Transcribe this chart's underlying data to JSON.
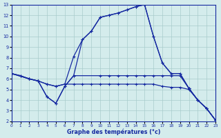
{
  "xlabel": "Graphe des températures (°c)",
  "xlim": [
    0,
    23
  ],
  "ylim": [
    2,
    13
  ],
  "xticks": [
    0,
    1,
    2,
    3,
    4,
    5,
    6,
    7,
    8,
    9,
    10,
    11,
    12,
    13,
    14,
    15,
    16,
    17,
    18,
    19,
    20,
    21,
    22,
    23
  ],
  "yticks": [
    2,
    3,
    4,
    5,
    6,
    7,
    8,
    9,
    10,
    11,
    12,
    13
  ],
  "bg_color": "#d4ecec",
  "grid_color": "#a8cccc",
  "lc": "#1428a0",
  "line1_x": [
    0,
    1,
    2,
    3,
    4,
    5,
    6,
    7,
    8,
    9,
    10,
    11,
    12,
    13,
    14,
    15,
    16,
    17,
    18,
    19,
    20,
    21,
    22,
    23
  ],
  "line1_y": [
    6.5,
    6.3,
    6.0,
    5.8,
    5.5,
    5.3,
    5.5,
    8.1,
    9.7,
    10.5,
    11.8,
    12.0,
    12.2,
    12.5,
    12.8,
    13.0,
    10.0,
    7.5,
    6.5,
    6.5,
    5.1,
    4.0,
    3.2,
    2.1
  ],
  "line2_x": [
    0,
    1,
    2,
    3,
    4,
    5,
    6,
    7,
    8,
    9,
    10,
    11,
    12,
    13,
    14,
    15,
    16,
    17,
    18,
    19,
    20,
    21,
    22,
    23
  ],
  "line2_y": [
    6.5,
    6.3,
    6.0,
    5.8,
    5.5,
    5.3,
    5.5,
    5.5,
    5.5,
    5.5,
    5.5,
    5.5,
    5.5,
    5.5,
    5.5,
    5.5,
    5.5,
    5.3,
    5.2,
    5.2,
    5.0,
    4.0,
    3.2,
    2.1
  ],
  "line3_x": [
    0,
    2,
    3,
    4,
    5,
    6,
    7,
    8,
    9,
    10,
    11,
    12,
    13,
    14,
    15,
    16,
    17,
    18,
    19,
    20,
    21,
    22,
    23
  ],
  "line3_y": [
    6.5,
    6.0,
    5.8,
    4.3,
    3.7,
    5.3,
    6.3,
    9.7,
    10.5,
    11.8,
    12.0,
    12.2,
    12.5,
    12.8,
    13.0,
    10.0,
    7.5,
    6.5,
    6.5,
    5.1,
    4.0,
    3.2,
    2.1
  ],
  "line4_x": [
    0,
    2,
    3,
    4,
    5,
    6,
    7,
    10,
    11,
    12,
    13,
    14,
    15,
    16,
    17,
    18,
    19,
    20,
    21,
    22,
    23
  ],
  "line4_y": [
    6.5,
    6.0,
    5.8,
    4.3,
    3.7,
    5.3,
    6.3,
    6.3,
    6.3,
    6.3,
    6.3,
    6.3,
    6.3,
    6.3,
    6.3,
    6.3,
    6.3,
    5.1,
    4.0,
    3.2,
    2.1
  ]
}
